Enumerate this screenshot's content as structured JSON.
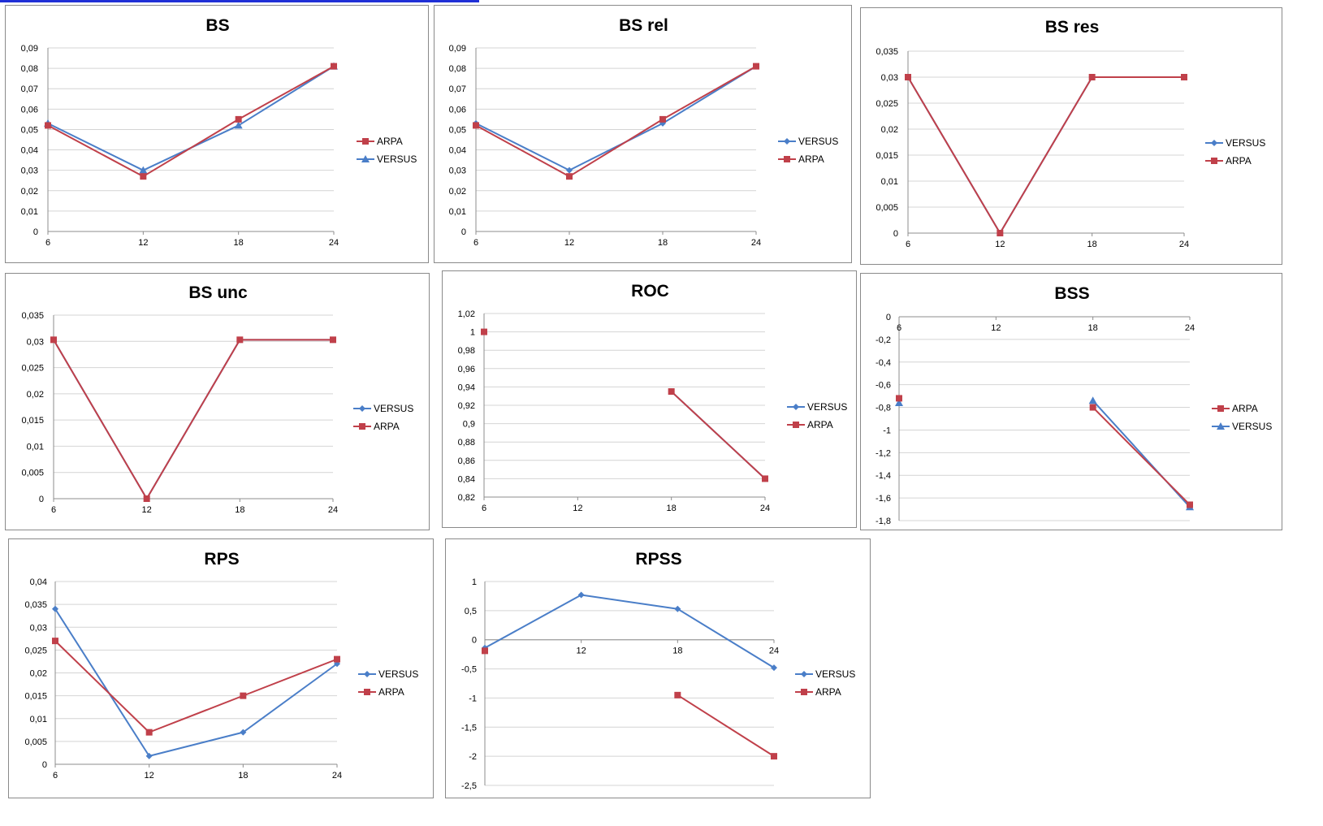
{
  "colors": {
    "VERSUS": "#4a7ec8",
    "ARPA": "#c0404a"
  },
  "chart_data": [
    {
      "type": "line",
      "title": "BS",
      "x": [
        6,
        12,
        18,
        24
      ],
      "ylim": [
        0,
        0.09
      ],
      "ystep": 0.01,
      "ydec": 2,
      "legend": [
        "ARPA",
        "VERSUS"
      ],
      "legend_position": "right",
      "series": [
        {
          "name": "VERSUS",
          "marker": "triangle",
          "values": [
            0.053,
            0.03,
            0.052,
            0.081
          ]
        },
        {
          "name": "ARPA",
          "marker": "square",
          "values": [
            0.052,
            0.027,
            0.055,
            0.081
          ]
        }
      ]
    },
    {
      "type": "line",
      "title": "BS rel",
      "x": [
        6,
        12,
        18,
        24
      ],
      "ylim": [
        0,
        0.09
      ],
      "ystep": 0.01,
      "ydec": 2,
      "legend": [
        "VERSUS",
        "ARPA"
      ],
      "legend_position": "right",
      "series": [
        {
          "name": "VERSUS",
          "marker": "diamond",
          "values": [
            0.053,
            0.03,
            0.053,
            0.081
          ]
        },
        {
          "name": "ARPA",
          "marker": "square",
          "values": [
            0.052,
            0.027,
            0.055,
            0.081
          ]
        }
      ]
    },
    {
      "type": "line",
      "title": "BS res",
      "x": [
        6,
        12,
        18,
        24
      ],
      "ylim": [
        0,
        0.035
      ],
      "ystep": 0.005,
      "ydec": 3,
      "legend": [
        "VERSUS",
        "ARPA"
      ],
      "legend_position": "right",
      "series": [
        {
          "name": "VERSUS",
          "marker": "diamond",
          "values": [
            0.03,
            0.0,
            0.03,
            0.03
          ]
        },
        {
          "name": "ARPA",
          "marker": "square",
          "values": [
            0.03,
            0.0,
            0.03,
            0.03
          ]
        }
      ]
    },
    {
      "type": "line",
      "title": "BS unc",
      "x": [
        6,
        12,
        18,
        24
      ],
      "ylim": [
        0,
        0.035
      ],
      "ystep": 0.005,
      "ydec": 3,
      "legend": [
        "VERSUS",
        "ARPA"
      ],
      "legend_position": "right",
      "series": [
        {
          "name": "VERSUS",
          "marker": "diamond",
          "values": [
            0.0303,
            0.0,
            0.0303,
            0.0303
          ]
        },
        {
          "name": "ARPA",
          "marker": "square",
          "values": [
            0.0303,
            0.0,
            0.0303,
            0.0303
          ]
        }
      ]
    },
    {
      "type": "line",
      "title": "ROC",
      "x": [
        6,
        12,
        18,
        24
      ],
      "ylim": [
        0.82,
        1.02
      ],
      "ystep": 0.02,
      "ydec": 2,
      "legend": [
        "VERSUS",
        "ARPA"
      ],
      "legend_position": "right",
      "series": [
        {
          "name": "VERSUS",
          "marker": "diamond",
          "values": [
            1.0,
            null,
            0.935,
            0.84
          ]
        },
        {
          "name": "ARPA",
          "marker": "square",
          "values": [
            1.0,
            null,
            0.935,
            0.84
          ]
        }
      ]
    },
    {
      "type": "line",
      "title": "BSS",
      "x": [
        6,
        12,
        18,
        24
      ],
      "ylim": [
        -1.8,
        0
      ],
      "ystep": 0.2,
      "ydec": 1,
      "xlabels_at_top": true,
      "legend": [
        "ARPA",
        "VERSUS"
      ],
      "legend_position": "right",
      "series": [
        {
          "name": "VERSUS",
          "marker": "triangle",
          "values": [
            -0.76,
            null,
            -0.74,
            -1.68
          ]
        },
        {
          "name": "ARPA",
          "marker": "square",
          "values": [
            -0.72,
            null,
            -0.8,
            -1.66
          ]
        }
      ]
    },
    {
      "type": "line",
      "title": "RPS",
      "x": [
        6,
        12,
        18,
        24
      ],
      "ylim": [
        0,
        0.04
      ],
      "ystep": 0.005,
      "ydec": 3,
      "legend": [
        "VERSUS",
        "ARPA"
      ],
      "legend_position": "right",
      "series": [
        {
          "name": "VERSUS",
          "marker": "diamond",
          "values": [
            0.034,
            0.0018,
            0.007,
            0.022
          ]
        },
        {
          "name": "ARPA",
          "marker": "square",
          "values": [
            0.027,
            0.007,
            0.015,
            0.023
          ]
        }
      ]
    },
    {
      "type": "line",
      "title": "RPSS",
      "x": [
        6,
        12,
        18,
        24
      ],
      "ylim": [
        -2.5,
        1
      ],
      "ystep": 0.5,
      "ydec": 1,
      "xlabels_at_zero": true,
      "legend": [
        "VERSUS",
        "ARPA"
      ],
      "legend_position": "right",
      "series": [
        {
          "name": "VERSUS",
          "marker": "diamond",
          "values": [
            -0.14,
            0.77,
            0.53,
            -0.48
          ]
        },
        {
          "name": "ARPA",
          "marker": "square",
          "values": [
            -0.19,
            null,
            -0.95,
            -2.0
          ]
        }
      ]
    }
  ]
}
